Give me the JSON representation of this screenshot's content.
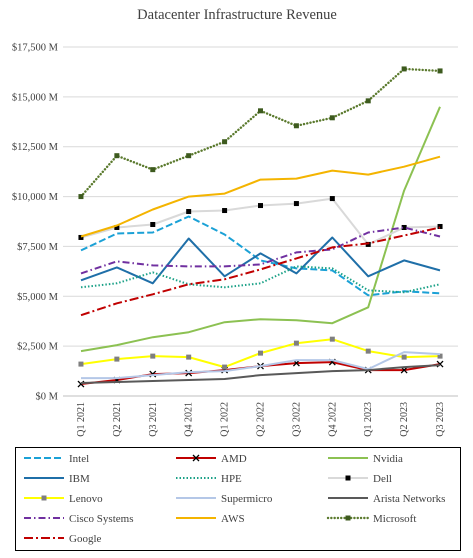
{
  "chart_data": {
    "type": "line",
    "title": "Datacenter Infrastructure Revenue",
    "xlabel": "",
    "ylabel": "",
    "ylim": [
      0,
      17500
    ],
    "y_ticks": [
      0,
      2500,
      5000,
      7500,
      10000,
      12500,
      15000,
      17500
    ],
    "y_tick_labels": [
      "$0 M",
      "$2,500 M",
      "$5,000 M",
      "$7,500 M",
      "$10,000 M",
      "$12,500 M",
      "$15,000 M",
      "$17,500 M"
    ],
    "grid": true,
    "legend_position": "bottom",
    "categories": [
      "Q1 2021",
      "Q2 2021",
      "Q3 2021",
      "Q4 2021",
      "Q1 2022",
      "Q2 2022",
      "Q3 2022",
      "Q4 2022",
      "Q1 2023",
      "Q2 2023",
      "Q3 2023"
    ],
    "series": [
      {
        "name": "Intel",
        "color": "#1ba1d6",
        "dash": "long-dash",
        "marker": "none",
        "values": [
          7300,
          8150,
          8200,
          9000,
          8100,
          6800,
          6400,
          6300,
          5050,
          5250,
          5150
        ]
      },
      {
        "name": "AMD",
        "color": "#c00000",
        "dash": "solid",
        "marker": "x",
        "values": [
          600,
          800,
          1100,
          1150,
          1300,
          1500,
          1650,
          1700,
          1300,
          1300,
          1600
        ]
      },
      {
        "name": "Nvidia",
        "color": "#8cc152",
        "dash": "solid",
        "marker": "none",
        "values": [
          2250,
          2550,
          2950,
          3200,
          3700,
          3850,
          3800,
          3650,
          4450,
          10300,
          14500
        ]
      },
      {
        "name": "IBM",
        "color": "#1f6fa8",
        "dash": "solid",
        "marker": "none",
        "values": [
          5800,
          6450,
          5650,
          7900,
          6000,
          7150,
          6150,
          7950,
          6000,
          6800,
          6300
        ]
      },
      {
        "name": "HPE",
        "color": "#1ba187",
        "dash": "dotted",
        "marker": "none",
        "values": [
          5450,
          5650,
          6200,
          5600,
          5450,
          5650,
          6500,
          6400,
          5300,
          5200,
          5600
        ]
      },
      {
        "name": "Dell",
        "color": "#d9d9d9",
        "dash": "solid",
        "marker": "square",
        "values": [
          7950,
          8450,
          8600,
          9250,
          9300,
          9550,
          9650,
          9900,
          7600,
          8450,
          8500
        ]
      },
      {
        "name": "Lenovo",
        "color": "#ffff00",
        "dash": "solid",
        "marker": "square",
        "values": [
          1600,
          1850,
          2000,
          1950,
          1450,
          2150,
          2650,
          2850,
          2250,
          1950,
          2000
        ]
      },
      {
        "name": "Supermicro",
        "color": "#b4c7e7",
        "dash": "solid",
        "marker": "none",
        "values": [
          900,
          900,
          1050,
          1200,
          1250,
          1500,
          1800,
          1800,
          1350,
          2200,
          2100
        ]
      },
      {
        "name": "Arista Networks",
        "color": "#595959",
        "dash": "solid",
        "marker": "none",
        "values": [
          650,
          700,
          750,
          800,
          850,
          1050,
          1150,
          1250,
          1300,
          1450,
          1550
        ]
      },
      {
        "name": "Cisco Systems",
        "color": "#7030a0",
        "dash": "dash-dot",
        "marker": "none",
        "values": [
          6150,
          6750,
          6550,
          6500,
          6500,
          6600,
          7200,
          7350,
          8200,
          8450,
          8000
        ]
      },
      {
        "name": "AWS",
        "color": "#f4b400",
        "dash": "solid",
        "marker": "none",
        "values": [
          8000,
          8550,
          9350,
          10000,
          10150,
          10850,
          10900,
          11300,
          11100,
          11500,
          12000
        ]
      },
      {
        "name": "Microsoft",
        "color": "#5b7a2e",
        "dash": "round-dot",
        "marker": "square",
        "values": [
          10000,
          12050,
          11350,
          12050,
          12750,
          14300,
          13550,
          13950,
          14800,
          16400,
          16300
        ]
      },
      {
        "name": "Google",
        "color": "#c00000",
        "dash": "long-dash-dot",
        "marker": "none",
        "values": [
          4050,
          4650,
          5100,
          5600,
          5850,
          6350,
          6900,
          7450,
          7650,
          8050,
          8450
        ]
      }
    ]
  }
}
